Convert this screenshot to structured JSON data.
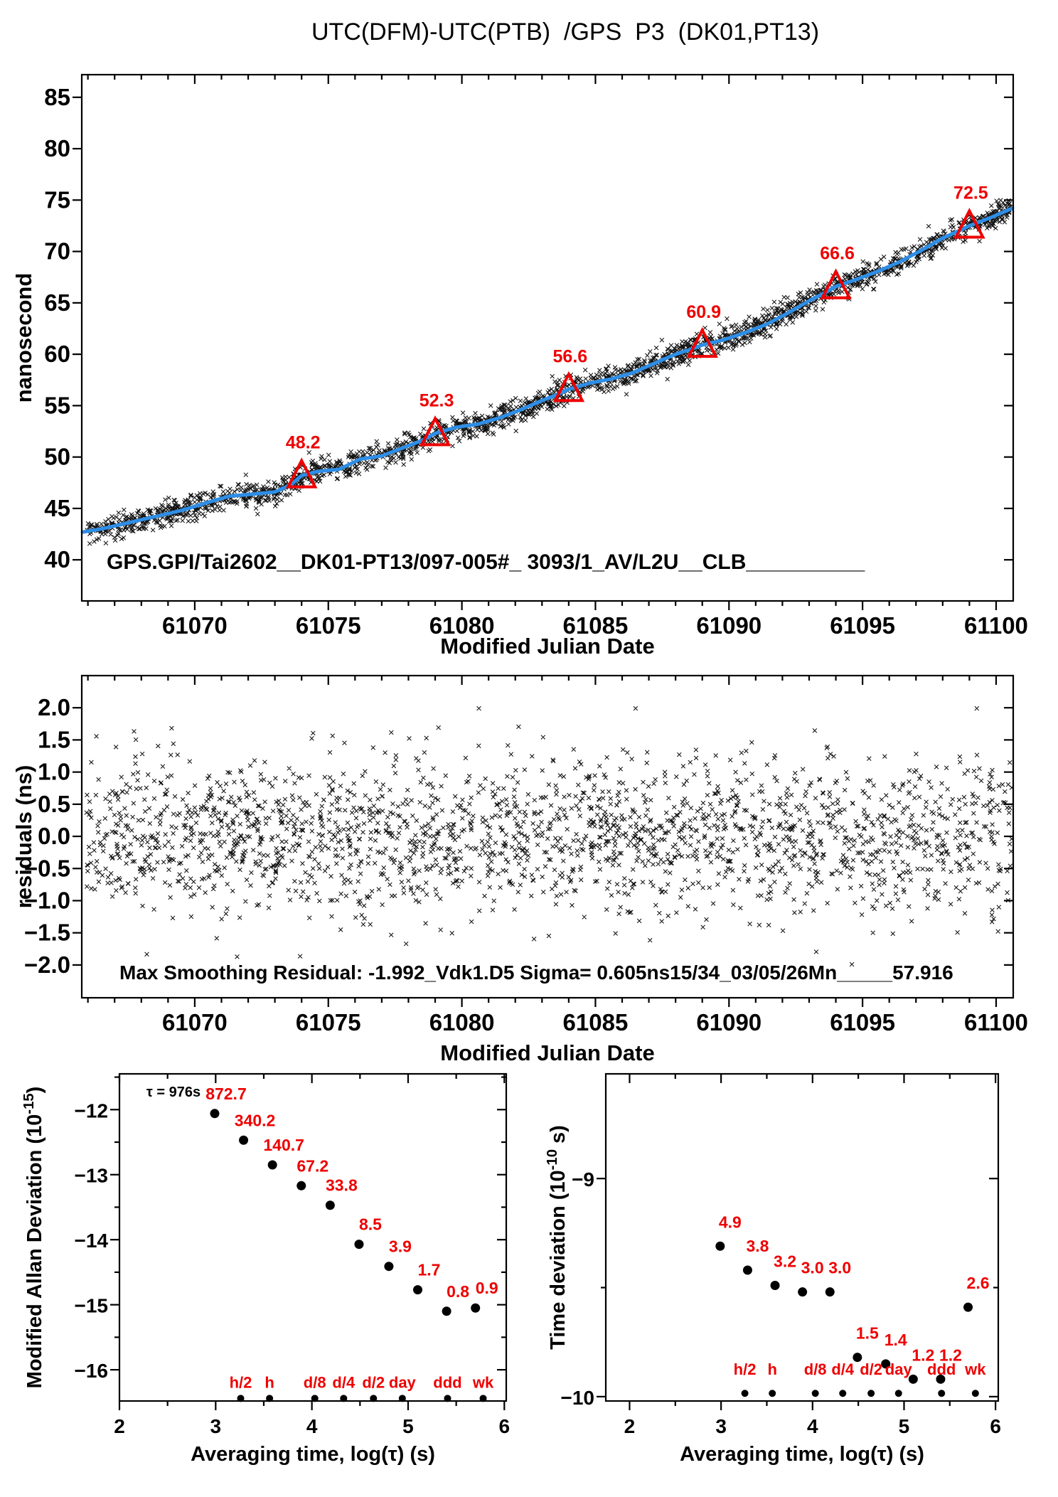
{
  "figure": {
    "title": "UTC(DFM)-UTC(PTB)  /GPS  P3  (DK01,PT13)",
    "background": "#ffffff"
  },
  "colors": {
    "ink": "#000000",
    "red": "#ee0000",
    "blue": "#2e8ee6"
  },
  "chart_data": [
    {
      "id": "phase",
      "type": "scatter",
      "xlabel": "Modified Julian Date",
      "ylabel": "nanosecond",
      "xlim": [
        61065.77,
        61100.64
      ],
      "ylim": [
        36.0,
        87.2
      ],
      "xticks": {
        "values": [
          61070,
          61075,
          61080,
          61085,
          61090,
          61095,
          61100
        ],
        "labels": [
          "61070",
          "61075",
          "61080",
          "61085",
          "61090",
          "61095",
          "61100"
        ],
        "minor_step": 1
      },
      "yticks": {
        "values": [
          40,
          45,
          50,
          55,
          60,
          65,
          70,
          75,
          80,
          85
        ],
        "labels": [
          "40",
          "45",
          "50",
          "55",
          "60",
          "65",
          "70",
          "75",
          "80",
          "85"
        ],
        "minor_step": 0
      },
      "inner_text": "GPS.GPI/Tai2602__DK01-PT13/097-005#_  3093/1_AV/L2U__CLB__________",
      "smoothed_line": {
        "color": "blue",
        "knots": [
          [
            61065.8,
            42.7
          ],
          [
            61066.5,
            43.0
          ],
          [
            61067.5,
            43.6
          ],
          [
            61068.5,
            44.2
          ],
          [
            61069.5,
            44.8
          ],
          [
            61070.5,
            45.6
          ],
          [
            61071.3,
            46.2
          ],
          [
            61072.2,
            46.4
          ],
          [
            61073,
            46.6
          ],
          [
            61073.6,
            47.3
          ],
          [
            61074,
            48.2
          ],
          [
            61074.6,
            48.6
          ],
          [
            61075.4,
            48.8
          ],
          [
            61076.2,
            49.8
          ],
          [
            61077,
            50.1
          ],
          [
            61077.8,
            50.9
          ],
          [
            61078.5,
            51.6
          ],
          [
            61079,
            52.3
          ],
          [
            61079.8,
            52.9
          ],
          [
            61080.6,
            53.2
          ],
          [
            61081.4,
            53.8
          ],
          [
            61082.2,
            54.6
          ],
          [
            61083,
            55.5
          ],
          [
            61083.6,
            56.1
          ],
          [
            61084,
            56.6
          ],
          [
            61084.8,
            57.2
          ],
          [
            61085.6,
            57.6
          ],
          [
            61086.4,
            58.2
          ],
          [
            61087.2,
            59.1
          ],
          [
            61088,
            60.0
          ],
          [
            61088.6,
            60.5
          ],
          [
            61089,
            60.9
          ],
          [
            61089.8,
            61.4
          ],
          [
            61090.6,
            62.1
          ],
          [
            61091.4,
            62.9
          ],
          [
            61092.2,
            64.0
          ],
          [
            61093,
            65.2
          ],
          [
            61093.6,
            66.0
          ],
          [
            61094,
            66.6
          ],
          [
            61094.8,
            67.3
          ],
          [
            61095.6,
            68.1
          ],
          [
            61096.4,
            69.0
          ],
          [
            61097.2,
            70.1
          ],
          [
            61098,
            71.3
          ],
          [
            61098.6,
            72.0
          ],
          [
            61099,
            72.5
          ],
          [
            61099.8,
            73.3
          ],
          [
            61100.6,
            74.2
          ]
        ]
      },
      "scatter_model": {
        "n": 2200,
        "sigma": 0.605,
        "seed": 101,
        "x_start": 61065.95,
        "x_end": 61100.6,
        "marker": "x-cross"
      },
      "calibration_markers": [
        {
          "mjd": 61074,
          "value": 48.2,
          "label": "48.2"
        },
        {
          "mjd": 61079,
          "value": 52.3,
          "label": "52.3"
        },
        {
          "mjd": 61084,
          "value": 56.6,
          "label": "56.6"
        },
        {
          "mjd": 61089,
          "value": 60.9,
          "label": "60.9"
        },
        {
          "mjd": 61094,
          "value": 66.6,
          "label": "66.6"
        },
        {
          "mjd": 61099,
          "value": 72.5,
          "label": "72.5"
        }
      ]
    },
    {
      "id": "residuals",
      "type": "scatter",
      "xlabel": "Modified Julian Date",
      "ylabel": "residuals (ns)",
      "xlim": [
        61065.77,
        61100.64
      ],
      "ylim": [
        -2.51,
        2.5
      ],
      "xticks": {
        "values": [
          61070,
          61075,
          61080,
          61085,
          61090,
          61095,
          61100
        ],
        "labels": [
          "61070",
          "61075",
          "61080",
          "61085",
          "61090",
          "61095",
          "61100"
        ],
        "minor_step": 1
      },
      "yticks": {
        "values": [
          2,
          1.5,
          1,
          0.5,
          0,
          -0.5,
          -1,
          -1.5,
          -2
        ],
        "labels": [
          "2.0",
          "1.5",
          "1.0",
          "0.5",
          "0.0",
          "−0.5",
          "−1.0",
          "−1.5",
          "−2.0"
        ],
        "minor_step": 0
      },
      "inner_text": "Max Smoothing Residual: -1.992_Vdk1.D5  Sigma= 0.605ns15/34_03/05/26Mn_____57.916",
      "scatter_model": {
        "n": 2200,
        "sigma": 0.605,
        "seed": 202,
        "x_start": 61065.95,
        "x_end": 61100.6,
        "clip": 1.99,
        "marker": "x-cross"
      }
    },
    {
      "id": "mdev",
      "type": "scatter",
      "xlabel": "Averaging time, log(τ) (s)",
      "ylabel": {
        "pre": "Modified Allan Deviation (10",
        "sup": "-15",
        "post": ")"
      },
      "xlim": [
        2.0,
        6.02
      ],
      "ylim": [
        -16.48,
        -11.45
      ],
      "xticks": {
        "values": [
          2,
          3,
          4,
          5,
          6
        ],
        "labels": [
          "2",
          "3",
          "4",
          "5",
          "6"
        ],
        "minor_step": 0.5
      },
      "yticks": {
        "values": [
          -12,
          -13,
          -14,
          -15,
          -16
        ],
        "labels": [
          "−12",
          "−13",
          "−14",
          "−15",
          "−16"
        ],
        "minor_step": 0.5
      },
      "annotation": {
        "text": "τ = 976s",
        "x": 2.28,
        "y": -11.8
      },
      "points": [
        {
          "x": 2.99,
          "y": -12.06,
          "label": "872.7"
        },
        {
          "x": 3.29,
          "y": -12.47,
          "label": "340.2"
        },
        {
          "x": 3.59,
          "y": -12.85,
          "label": "140.7"
        },
        {
          "x": 3.89,
          "y": -13.17,
          "label": "67.2"
        },
        {
          "x": 4.19,
          "y": -13.47,
          "label": "33.8"
        },
        {
          "x": 4.49,
          "y": -14.07,
          "label": "8.5"
        },
        {
          "x": 4.8,
          "y": -14.41,
          "label": "3.9"
        },
        {
          "x": 5.1,
          "y": -14.77,
          "label": "1.7"
        },
        {
          "x": 5.4,
          "y": -15.1,
          "label": "0.8"
        },
        {
          "x": 5.7,
          "y": -15.05,
          "label": "0.9"
        }
      ],
      "unit_marks": {
        "labels": [
          "h/2",
          "h",
          "d/8",
          "d/4",
          "d/2",
          "day",
          "ddd",
          "wk"
        ],
        "x": [
          3.26,
          3.56,
          4.03,
          4.33,
          4.64,
          4.94,
          5.41,
          5.78
        ],
        "label_y": -16.28,
        "dot_y": -16.44
      }
    },
    {
      "id": "tdev",
      "type": "scatter",
      "xlabel": "Averaging time, log(τ) (s)",
      "ylabel": {
        "pre": "Time deviation (10",
        "sup": "-10",
        "post": " s)"
      },
      "xlim": [
        1.74,
        6.03
      ],
      "ylim": [
        -10.02,
        -8.52
      ],
      "xticks": {
        "values": [
          2,
          3,
          4,
          5,
          6
        ],
        "labels": [
          "2",
          "3",
          "4",
          "5",
          "6"
        ],
        "minor_step": 0.5
      },
      "yticks": {
        "values": [
          -9,
          -10
        ],
        "labels": [
          "−9",
          "−10"
        ],
        "minor_step": 0.5
      },
      "points": [
        {
          "x": 2.99,
          "y": -9.31,
          "label": "4.9"
        },
        {
          "x": 3.29,
          "y": -9.42,
          "label": "3.8"
        },
        {
          "x": 3.59,
          "y": -9.49,
          "label": "3.2"
        },
        {
          "x": 3.89,
          "y": -9.52,
          "label": "3.0"
        },
        {
          "x": 4.19,
          "y": -9.52,
          "label": "3.0"
        },
        {
          "x": 4.49,
          "y": -9.82,
          "label": "1.5"
        },
        {
          "x": 4.8,
          "y": -9.85,
          "label": "1.4"
        },
        {
          "x": 5.1,
          "y": -9.92,
          "label": "1.2"
        },
        {
          "x": 5.4,
          "y": -9.92,
          "label": "1.2"
        },
        {
          "x": 5.7,
          "y": -9.59,
          "label": "2.6"
        }
      ],
      "unit_marks": {
        "labels": [
          "h/2",
          "h",
          "d/8",
          "d/4",
          "d/2",
          "day",
          "ddd",
          "wk"
        ],
        "x": [
          3.26,
          3.56,
          4.03,
          4.33,
          4.64,
          4.94,
          5.41,
          5.78
        ],
        "label_y": -9.9,
        "dot_y": -9.985
      }
    }
  ]
}
